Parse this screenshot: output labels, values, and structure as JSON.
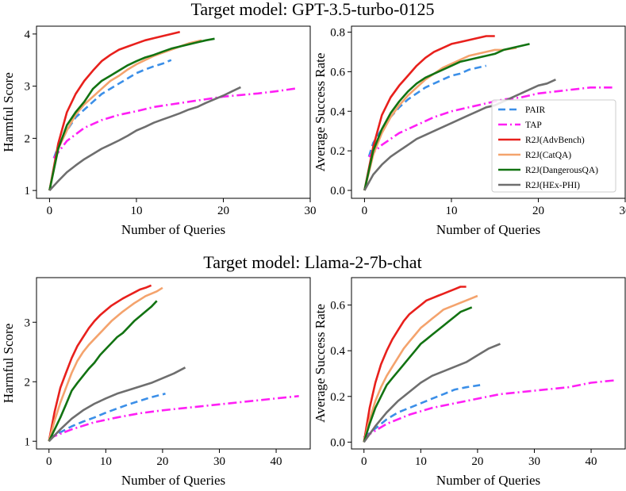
{
  "figure": {
    "row_titles": [
      "Target model: GPT-3.5-turbo-0125",
      "Target model: Llama-2-7b-chat"
    ]
  },
  "series_styles": [
    {
      "name": "PAIR",
      "color": "#3b8fe8",
      "dash": "9,5"
    },
    {
      "name": "TAP",
      "color": "#ff1ff5",
      "dash": "11,4,2,4"
    },
    {
      "name": "R2J(AdvBench)",
      "color": "#e8201c",
      "dash": ""
    },
    {
      "name": "R2J(CatQA)",
      "color": "#f4a36d",
      "dash": ""
    },
    {
      "name": "R2J(DangerousQA)",
      "color": "#127312",
      "dash": ""
    },
    {
      "name": "R2J(HEx-PHI)",
      "color": "#6e6e6e",
      "dash": ""
    }
  ],
  "chart_data": [
    {
      "type": "line",
      "group_title": "Target model: GPT-3.5-turbo-0125",
      "xlabel": "Number of Queries",
      "ylabel": "Harmful Score",
      "xlim": [
        -1.5,
        30
      ],
      "ylim": [
        0.85,
        4.15
      ],
      "xticks": [
        "0",
        "10",
        "20",
        "30"
      ],
      "yticks": [
        "1",
        "2",
        "3",
        "4"
      ],
      "legend": false,
      "series": [
        {
          "name": "PAIR",
          "x": [
            0.5,
            1,
            2,
            3,
            4,
            5,
            6,
            7,
            8,
            9,
            10,
            11,
            12,
            13,
            14
          ],
          "y": [
            1.62,
            1.85,
            2.15,
            2.4,
            2.55,
            2.7,
            2.85,
            2.95,
            3.05,
            3.15,
            3.25,
            3.32,
            3.38,
            3.43,
            3.5
          ]
        },
        {
          "name": "TAP",
          "x": [
            0.5,
            2,
            4,
            6,
            8,
            10,
            12,
            14,
            16,
            18,
            20,
            22,
            24,
            26,
            28.5
          ],
          "y": [
            1.62,
            1.95,
            2.2,
            2.35,
            2.45,
            2.52,
            2.6,
            2.65,
            2.7,
            2.75,
            2.8,
            2.83,
            2.86,
            2.9,
            2.96
          ]
        },
        {
          "name": "R2J(AdvBench)",
          "x": [
            0,
            1,
            2,
            3,
            4,
            5,
            6,
            7,
            8,
            9,
            10,
            11,
            12,
            13,
            14,
            15
          ],
          "y": [
            1.0,
            1.9,
            2.5,
            2.85,
            3.1,
            3.3,
            3.48,
            3.6,
            3.7,
            3.76,
            3.82,
            3.88,
            3.92,
            3.96,
            4.0,
            4.04
          ]
        },
        {
          "name": "R2J(CatQA)",
          "x": [
            0,
            1,
            2,
            3,
            4,
            5,
            6,
            7,
            8,
            9,
            10,
            11,
            12,
            13,
            14,
            15,
            16,
            17.5
          ],
          "y": [
            1.0,
            1.8,
            2.15,
            2.45,
            2.65,
            2.8,
            2.95,
            3.1,
            3.2,
            3.32,
            3.42,
            3.5,
            3.58,
            3.64,
            3.7,
            3.76,
            3.82,
            3.88
          ]
        },
        {
          "name": "R2J(DangerousQA)",
          "x": [
            0,
            1,
            2,
            3,
            4,
            5,
            6,
            7,
            8,
            9,
            10,
            11,
            12,
            13,
            14,
            15,
            16,
            17,
            18,
            19
          ],
          "y": [
            1.0,
            1.8,
            2.25,
            2.5,
            2.7,
            2.95,
            3.1,
            3.2,
            3.3,
            3.4,
            3.48,
            3.55,
            3.6,
            3.66,
            3.72,
            3.76,
            3.8,
            3.84,
            3.88,
            3.91
          ]
        },
        {
          "name": "R2J(HEx-PHI)",
          "x": [
            0,
            1,
            2,
            3,
            4,
            5,
            6,
            7,
            8,
            9,
            10,
            11,
            12,
            13,
            14,
            15,
            16,
            17,
            18,
            19,
            20,
            21,
            22
          ],
          "y": [
            1.0,
            1.18,
            1.35,
            1.48,
            1.6,
            1.7,
            1.8,
            1.88,
            1.96,
            2.05,
            2.15,
            2.22,
            2.3,
            2.36,
            2.42,
            2.48,
            2.55,
            2.6,
            2.68,
            2.75,
            2.82,
            2.9,
            2.98
          ]
        }
      ]
    },
    {
      "type": "line",
      "group_title": "Target model: GPT-3.5-turbo-0125",
      "xlabel": "Number of Queries",
      "ylabel": "Average Success Rate",
      "xlim": [
        -1.5,
        30
      ],
      "ylim": [
        -0.04,
        0.83
      ],
      "xticks": [
        "0",
        "10",
        "20",
        "30"
      ],
      "yticks": [
        "0.0",
        "0.2",
        "0.4",
        "0.6",
        "0.8"
      ],
      "legend": true,
      "legend_position": "lower-right",
      "series": [
        {
          "name": "PAIR",
          "x": [
            0.5,
            1,
            2,
            3,
            4,
            5,
            6,
            7,
            8,
            9,
            10,
            11,
            12,
            13,
            14
          ],
          "y": [
            0.17,
            0.24,
            0.31,
            0.37,
            0.42,
            0.46,
            0.49,
            0.52,
            0.54,
            0.56,
            0.58,
            0.59,
            0.61,
            0.62,
            0.63
          ]
        },
        {
          "name": "TAP",
          "x": [
            0.5,
            2,
            4,
            6,
            8,
            10,
            12,
            14,
            16,
            18,
            20,
            22,
            24,
            26,
            28.5
          ],
          "y": [
            0.17,
            0.23,
            0.29,
            0.33,
            0.37,
            0.4,
            0.42,
            0.44,
            0.46,
            0.47,
            0.49,
            0.5,
            0.51,
            0.52,
            0.52
          ]
        },
        {
          "name": "R2J(AdvBench)",
          "x": [
            0,
            1,
            2,
            3,
            4,
            5,
            6,
            7,
            8,
            9,
            10,
            11,
            12,
            13,
            14,
            15
          ],
          "y": [
            0.0,
            0.22,
            0.38,
            0.47,
            0.53,
            0.58,
            0.63,
            0.67,
            0.7,
            0.72,
            0.74,
            0.75,
            0.76,
            0.77,
            0.78,
            0.78
          ]
        },
        {
          "name": "R2J(CatQA)",
          "x": [
            0,
            1,
            2,
            3,
            4,
            5,
            6,
            7,
            8,
            9,
            10,
            11,
            12,
            13,
            14,
            15,
            16,
            17.5
          ],
          "y": [
            0.0,
            0.18,
            0.29,
            0.37,
            0.43,
            0.48,
            0.52,
            0.56,
            0.59,
            0.62,
            0.64,
            0.66,
            0.68,
            0.69,
            0.7,
            0.71,
            0.71,
            0.72
          ]
        },
        {
          "name": "R2J(DangerousQA)",
          "x": [
            0,
            1,
            2,
            3,
            4,
            5,
            6,
            7,
            8,
            9,
            10,
            11,
            12,
            13,
            14,
            15,
            16,
            17,
            18,
            19
          ],
          "y": [
            0.0,
            0.2,
            0.31,
            0.39,
            0.45,
            0.5,
            0.54,
            0.57,
            0.59,
            0.61,
            0.63,
            0.65,
            0.66,
            0.67,
            0.68,
            0.69,
            0.71,
            0.72,
            0.73,
            0.74
          ]
        },
        {
          "name": "R2J(HEx-PHI)",
          "x": [
            0,
            1,
            2,
            3,
            4,
            5,
            6,
            7,
            8,
            9,
            10,
            11,
            12,
            13,
            14,
            15,
            16,
            17,
            18,
            19,
            20,
            21,
            22
          ],
          "y": [
            0.0,
            0.08,
            0.13,
            0.17,
            0.2,
            0.23,
            0.26,
            0.28,
            0.3,
            0.32,
            0.34,
            0.36,
            0.38,
            0.4,
            0.42,
            0.43,
            0.45,
            0.47,
            0.49,
            0.51,
            0.53,
            0.54,
            0.56
          ]
        }
      ]
    },
    {
      "type": "line",
      "group_title": "Target model: Llama-2-7b-chat",
      "xlabel": "Number of Queries",
      "ylabel": "Harmful Score",
      "xlim": [
        -2.2,
        46
      ],
      "ylim": [
        0.87,
        3.75
      ],
      "xticks": [
        "0",
        "10",
        "20",
        "30",
        "40"
      ],
      "yticks": [
        "1",
        "2",
        "3"
      ],
      "legend": false,
      "series": [
        {
          "name": "PAIR",
          "x": [
            0,
            2,
            4,
            6,
            8,
            10,
            12,
            14,
            16,
            18,
            20.5
          ],
          "y": [
            1.05,
            1.15,
            1.25,
            1.33,
            1.4,
            1.48,
            1.55,
            1.62,
            1.68,
            1.74,
            1.8
          ]
        },
        {
          "name": "TAP",
          "x": [
            0,
            4,
            8,
            12,
            16,
            20,
            24,
            28,
            32,
            36,
            40,
            44
          ],
          "y": [
            1.05,
            1.2,
            1.32,
            1.4,
            1.47,
            1.52,
            1.56,
            1.6,
            1.64,
            1.68,
            1.72,
            1.76
          ]
        },
        {
          "name": "R2J(AdvBench)",
          "x": [
            0,
            1,
            2,
            3,
            4,
            5,
            6,
            7,
            8,
            9,
            10,
            11,
            12,
            13,
            14,
            15,
            16,
            17,
            18
          ],
          "y": [
            1.0,
            1.5,
            1.9,
            2.15,
            2.4,
            2.6,
            2.75,
            2.9,
            3.02,
            3.12,
            3.2,
            3.28,
            3.34,
            3.4,
            3.45,
            3.5,
            3.55,
            3.58,
            3.62
          ]
        },
        {
          "name": "R2J(CatQA)",
          "x": [
            0,
            1,
            2,
            3,
            4,
            5,
            6,
            7,
            8,
            9,
            10,
            11,
            12,
            13,
            14,
            15,
            16,
            17,
            18,
            19,
            20
          ],
          "y": [
            1.0,
            1.35,
            1.65,
            1.9,
            2.15,
            2.35,
            2.5,
            2.62,
            2.72,
            2.82,
            2.92,
            3.02,
            3.1,
            3.18,
            3.25,
            3.32,
            3.38,
            3.44,
            3.48,
            3.52,
            3.58
          ]
        },
        {
          "name": "R2J(DangerousQA)",
          "x": [
            0,
            1,
            2,
            3,
            4,
            5,
            6,
            7,
            8,
            9,
            10,
            11,
            12,
            13,
            14,
            15,
            16,
            17,
            18,
            19
          ],
          "y": [
            1.0,
            1.2,
            1.4,
            1.62,
            1.85,
            1.98,
            2.1,
            2.22,
            2.32,
            2.45,
            2.55,
            2.65,
            2.75,
            2.82,
            2.92,
            3.02,
            3.1,
            3.18,
            3.26,
            3.36
          ]
        },
        {
          "name": "R2J(HEx-PHI)",
          "x": [
            0,
            2,
            4,
            6,
            8,
            10,
            12,
            14,
            16,
            18,
            20,
            22,
            24
          ],
          "y": [
            1.0,
            1.2,
            1.38,
            1.52,
            1.63,
            1.72,
            1.8,
            1.86,
            1.92,
            1.98,
            2.06,
            2.14,
            2.24
          ]
        }
      ]
    },
    {
      "type": "line",
      "group_title": "Target model: Llama-2-7b-chat",
      "xlabel": "Number of Queries",
      "ylabel": "Average Success Rate",
      "xlim": [
        -2.2,
        46
      ],
      "ylim": [
        -0.03,
        0.72
      ],
      "xticks": [
        "0",
        "10",
        "20",
        "30",
        "40"
      ],
      "yticks": [
        "0.0",
        "0.2",
        "0.4",
        "0.6"
      ],
      "legend": false,
      "series": [
        {
          "name": "PAIR",
          "x": [
            0,
            2,
            4,
            6,
            8,
            10,
            12,
            14,
            16,
            18,
            20.5
          ],
          "y": [
            0.02,
            0.06,
            0.1,
            0.13,
            0.15,
            0.17,
            0.19,
            0.21,
            0.23,
            0.24,
            0.25
          ]
        },
        {
          "name": "TAP",
          "x": [
            0,
            4,
            8,
            12,
            16,
            20,
            24,
            28,
            32,
            36,
            40,
            44
          ],
          "y": [
            0.02,
            0.08,
            0.12,
            0.15,
            0.17,
            0.19,
            0.21,
            0.22,
            0.23,
            0.24,
            0.26,
            0.27
          ]
        },
        {
          "name": "R2J(AdvBench)",
          "x": [
            0,
            1,
            2,
            3,
            4,
            5,
            6,
            7,
            8,
            9,
            10,
            11,
            12,
            13,
            14,
            15,
            16,
            17,
            18
          ],
          "y": [
            0.0,
            0.15,
            0.26,
            0.34,
            0.4,
            0.45,
            0.49,
            0.53,
            0.56,
            0.58,
            0.6,
            0.62,
            0.63,
            0.64,
            0.65,
            0.66,
            0.67,
            0.68,
            0.68
          ]
        },
        {
          "name": "R2J(CatQA)",
          "x": [
            0,
            1,
            2,
            3,
            4,
            5,
            6,
            7,
            8,
            9,
            10,
            11,
            12,
            13,
            14,
            15,
            16,
            17,
            18,
            19,
            20
          ],
          "y": [
            0.0,
            0.1,
            0.18,
            0.24,
            0.29,
            0.33,
            0.37,
            0.41,
            0.44,
            0.47,
            0.5,
            0.52,
            0.54,
            0.56,
            0.58,
            0.59,
            0.6,
            0.61,
            0.62,
            0.63,
            0.64
          ]
        },
        {
          "name": "R2J(DangerousQA)",
          "x": [
            0,
            1,
            2,
            3,
            4,
            5,
            6,
            7,
            8,
            9,
            10,
            11,
            12,
            13,
            14,
            15,
            16,
            17,
            18,
            19
          ],
          "y": [
            0.0,
            0.08,
            0.15,
            0.2,
            0.25,
            0.28,
            0.31,
            0.34,
            0.37,
            0.4,
            0.43,
            0.45,
            0.47,
            0.49,
            0.51,
            0.53,
            0.55,
            0.57,
            0.58,
            0.59
          ]
        },
        {
          "name": "R2J(HEx-PHI)",
          "x": [
            0,
            2,
            4,
            6,
            8,
            10,
            12,
            14,
            16,
            18,
            20,
            22,
            24
          ],
          "y": [
            0.0,
            0.07,
            0.13,
            0.18,
            0.22,
            0.26,
            0.29,
            0.31,
            0.33,
            0.35,
            0.38,
            0.41,
            0.43
          ]
        }
      ]
    }
  ]
}
